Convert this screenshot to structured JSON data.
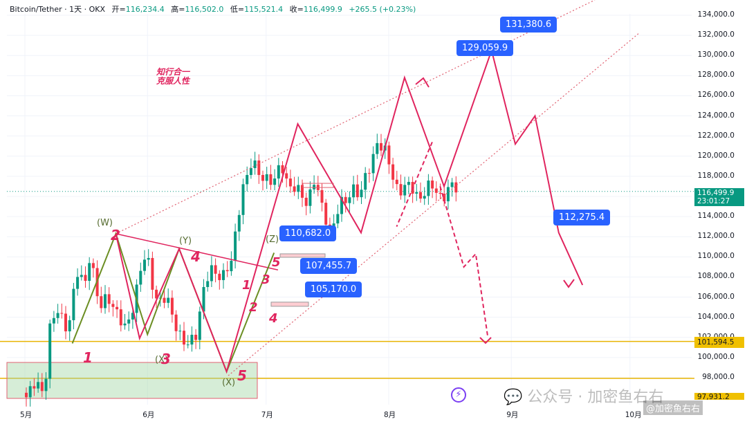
{
  "header": {
    "symbol": "Bitcoin/Tether · 1天 · OKX",
    "open_label": "开=",
    "open": "116,234.4",
    "high_label": "高=",
    "high": "116,502.0",
    "low_label": "低=",
    "low": "115,521.4",
    "close_label": "收=",
    "close": "116,499.9",
    "change": "+265.5 (+0.23%)"
  },
  "annotation_text": [
    "知行合一",
    "克服人性"
  ],
  "chart_data": {
    "type": "line",
    "y_ticks": [
      98000,
      100000,
      102000,
      104000,
      106000,
      108000,
      110000,
      112000,
      114000,
      116000,
      118000,
      120000,
      122000,
      124000,
      126000,
      128000,
      130000,
      132000,
      134000
    ],
    "y_tick_labels": [
      "98,000.0",
      "100,000.0",
      "102,000.0",
      "104,000.0",
      "106,000.0",
      "108,000.0",
      "110,000.0",
      "112,000.0",
      "114,000.0",
      "116,000.0",
      "118,000.0",
      "120,000.0",
      "122,000.0",
      "124,000.0",
      "126,000.0",
      "128,000.0",
      "130,000.0",
      "132,000.0",
      "134,000.0"
    ],
    "x_ticks": [
      "5月",
      "6月",
      "7月",
      "8月",
      "9月",
      "10月"
    ],
    "last_price": "116,499.9",
    "countdown": "23:01:27",
    "gold_levels": [
      "101,594.5",
      "97,931.2"
    ],
    "callouts": [
      "110,682.0",
      "107,455.7",
      "105,170.0",
      "129,059.9",
      "131,380.6",
      "112,275.4"
    ],
    "wave_labels": [
      "(W)",
      "(Y)",
      "(Z)",
      "(X)",
      "(X)",
      "1",
      "2",
      "3",
      "4",
      "5",
      "1",
      "2",
      "3",
      "4",
      "5"
    ],
    "projection": [
      [
        "2025-05-24",
        112300
      ],
      [
        "2025-05-30",
        101900
      ],
      [
        "2025-06-09",
        110800
      ],
      [
        "2025-06-21",
        98600
      ],
      [
        "2025-07-09",
        123200
      ],
      [
        "2025-07-25",
        112400
      ],
      [
        "2025-08-05",
        127800
      ],
      [
        "2025-08-15",
        117000
      ],
      [
        "2025-08-27",
        130500
      ],
      [
        "2025-09-02",
        121200
      ],
      [
        "2025-09-07",
        124000
      ],
      [
        "2025-09-13",
        112400
      ],
      [
        "2025-09-19",
        107200
      ]
    ],
    "wxy": [
      [
        "2025-05-13",
        101400
      ],
      [
        "2025-05-24",
        112300
      ],
      [
        "2025-06-01",
        102300
      ],
      [
        "2025-06-09",
        110800
      ],
      [
        "2025-06-21",
        98600
      ],
      [
        "2025-07-03",
        110400
      ]
    ],
    "bear_alt": [
      [
        "2025-08-14",
        117000
      ],
      [
        "2025-08-20",
        109000
      ],
      [
        "2025-08-23",
        110300
      ],
      [
        "2025-08-26",
        102200
      ]
    ]
  }
}
